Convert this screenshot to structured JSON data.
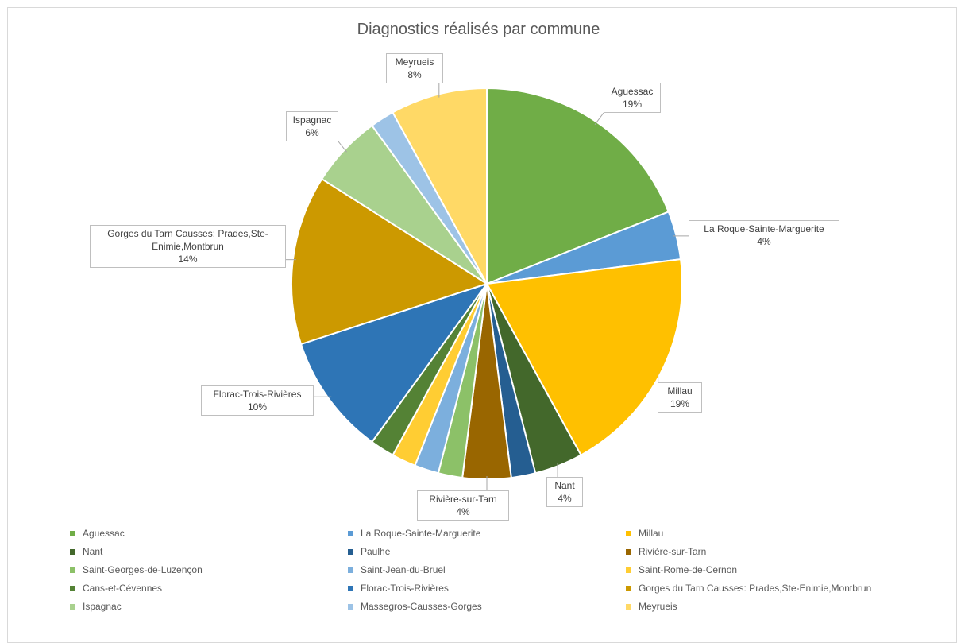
{
  "chart_data": {
    "type": "pie",
    "title": "Diagnostics réalisés par commune",
    "slices": [
      {
        "name": "Aguessac",
        "value": 19,
        "label": "19%",
        "color": "#70ad47"
      },
      {
        "name": "La Roque-Sainte-Marguerite",
        "value": 4,
        "label": "4%",
        "color": "#5b9bd5"
      },
      {
        "name": "Millau",
        "value": 19,
        "label": "19%",
        "color": "#ffc000"
      },
      {
        "name": "Nant",
        "value": 4,
        "label": "4%",
        "color": "#43682b"
      },
      {
        "name": "Paulhe",
        "value": 2,
        "label": "",
        "color": "#255e91"
      },
      {
        "name": "Rivière-sur-Tarn",
        "value": 4,
        "label": "4%",
        "color": "#996600"
      },
      {
        "name": "Saint-Georges-de-Luzençon",
        "value": 2,
        "label": "",
        "color": "#8cc168"
      },
      {
        "name": "Saint-Jean-du-Bruel",
        "value": 2,
        "label": "",
        "color": "#7cafdd"
      },
      {
        "name": "Saint-Rome-de-Cernon",
        "value": 2,
        "label": "",
        "color": "#ffcd33"
      },
      {
        "name": "Cans-et-Cévennes",
        "value": 2,
        "label": "",
        "color": "#548235"
      },
      {
        "name": "Florac-Trois-Rivières",
        "value": 10,
        "label": "10%",
        "color": "#2e75b6"
      },
      {
        "name": "Gorges du Tarn Causses: Prades,Ste-Enimie,Montbrun",
        "value": 14,
        "label": "14%",
        "color": "#cc9900"
      },
      {
        "name": "Ispagnac",
        "value": 6,
        "label": "6%",
        "color": "#a9d18e"
      },
      {
        "name": "Massegros-Causses-Gorges",
        "value": 2,
        "label": "",
        "color": "#9dc3e6"
      },
      {
        "name": "Meyrueis",
        "value": 8,
        "label": "8%",
        "color": "#ffd966"
      }
    ],
    "legend_position": "bottom"
  },
  "callouts": [
    {
      "name": "Aguessac",
      "lines": [
        "Aguessac",
        "19%"
      ]
    },
    {
      "name": "La Roque-Sainte-Marguerite",
      "lines": [
        "La Roque-Sainte-Marguerite",
        "4%"
      ]
    },
    {
      "name": "Millau",
      "lines": [
        "Millau",
        "19%"
      ]
    },
    {
      "name": "Nant",
      "lines": [
        "Nant",
        "4%"
      ]
    },
    {
      "name": "Rivière-sur-Tarn",
      "lines": [
        "Rivière-sur-Tarn",
        "4%"
      ]
    },
    {
      "name": "Florac-Trois-Rivières",
      "lines": [
        "Florac-Trois-Rivières",
        "10%"
      ]
    },
    {
      "name": "Gorges du Tarn Causses",
      "lines": [
        "Gorges du Tarn Causses: Prades,Ste-",
        "Enimie,Montbrun",
        "14%"
      ]
    },
    {
      "name": "Ispagnac",
      "lines": [
        "Ispagnac",
        "6%"
      ]
    },
    {
      "name": "Meyrueis",
      "lines": [
        "Meyrueis",
        "8%"
      ]
    }
  ]
}
